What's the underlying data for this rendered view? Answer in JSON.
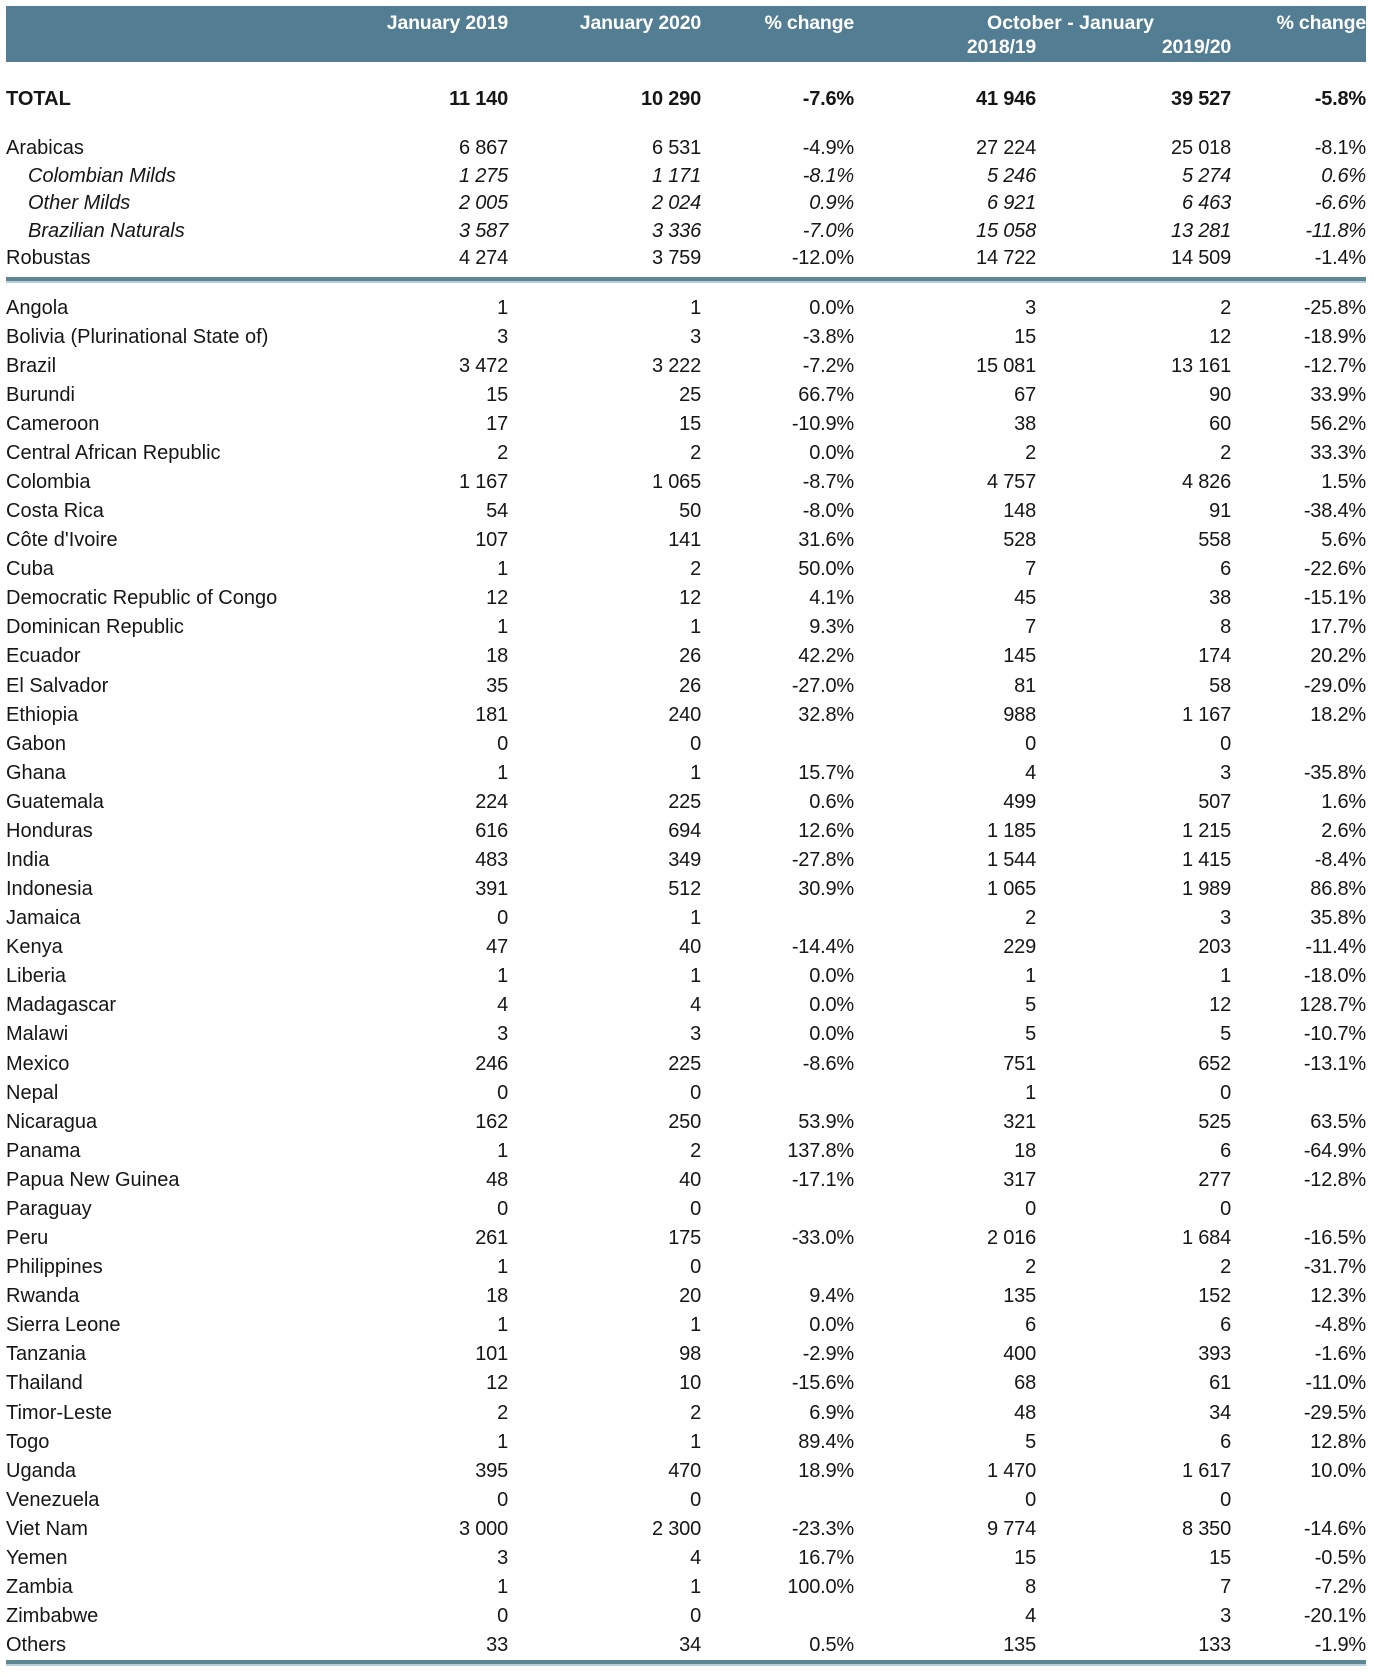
{
  "header": {
    "col_jan2019": "January 2019",
    "col_jan2020": "January 2020",
    "col_pct_change_month": "% change",
    "col_oct_jan": "October - January",
    "col_2018_19": "2018/19",
    "col_2019_20": "2019/20",
    "col_pct_change_season": "% change"
  },
  "total": {
    "label": "TOTAL",
    "values": [
      "11 140",
      "10 290",
      "-7.6%",
      "41 946",
      "39 527",
      "-5.8%"
    ]
  },
  "groups": [
    {
      "label": "Arabicas",
      "italic": false,
      "values": [
        "6 867",
        "6 531",
        "-4.9%",
        "27 224",
        "25 018",
        "-8.1%"
      ]
    },
    {
      "label": "Colombian Milds",
      "italic": true,
      "values": [
        "1 275",
        "1 171",
        "-8.1%",
        "5 246",
        "5 274",
        "0.6%"
      ]
    },
    {
      "label": "Other Milds",
      "italic": true,
      "values": [
        "2 005",
        "2 024",
        "0.9%",
        "6 921",
        "6 463",
        "-6.6%"
      ]
    },
    {
      "label": "Brazilian Naturals",
      "italic": true,
      "values": [
        "3 587",
        "3 336",
        "-7.0%",
        "15 058",
        "13 281",
        "-11.8%"
      ]
    },
    {
      "label": "Robustas",
      "italic": false,
      "values": [
        "4 274",
        "3 759",
        "-12.0%",
        "14 722",
        "14 509",
        "-1.4%"
      ]
    }
  ],
  "countries": [
    {
      "label": "Angola",
      "values": [
        "1",
        "1",
        "0.0%",
        "3",
        "2",
        "-25.8%"
      ]
    },
    {
      "label": "Bolivia (Plurinational State of)",
      "values": [
        "3",
        "3",
        "-3.8%",
        "15",
        "12",
        "-18.9%"
      ]
    },
    {
      "label": "Brazil",
      "values": [
        "3 472",
        "3 222",
        "-7.2%",
        "15 081",
        "13 161",
        "-12.7%"
      ]
    },
    {
      "label": "Burundi",
      "values": [
        "15",
        "25",
        "66.7%",
        "67",
        "90",
        "33.9%"
      ]
    },
    {
      "label": "Cameroon",
      "values": [
        "17",
        "15",
        "-10.9%",
        "38",
        "60",
        "56.2%"
      ]
    },
    {
      "label": "Central African Republic",
      "values": [
        "2",
        "2",
        "0.0%",
        "2",
        "2",
        "33.3%"
      ]
    },
    {
      "label": "Colombia",
      "values": [
        "1 167",
        "1 065",
        "-8.7%",
        "4 757",
        "4 826",
        "1.5%"
      ]
    },
    {
      "label": "Costa Rica",
      "values": [
        "54",
        "50",
        "-8.0%",
        "148",
        "91",
        "-38.4%"
      ]
    },
    {
      "label": "Côte d'Ivoire",
      "values": [
        "107",
        "141",
        "31.6%",
        "528",
        "558",
        "5.6%"
      ]
    },
    {
      "label": "Cuba",
      "values": [
        "1",
        "2",
        "50.0%",
        "7",
        "6",
        "-22.6%"
      ]
    },
    {
      "label": "Democratic Republic of Congo",
      "values": [
        "12",
        "12",
        "4.1%",
        "45",
        "38",
        "-15.1%"
      ]
    },
    {
      "label": "Dominican Republic",
      "values": [
        "1",
        "1",
        "9.3%",
        "7",
        "8",
        "17.7%"
      ]
    },
    {
      "label": "Ecuador",
      "values": [
        "18",
        "26",
        "42.2%",
        "145",
        "174",
        "20.2%"
      ]
    },
    {
      "label": "El Salvador",
      "values": [
        "35",
        "26",
        "-27.0%",
        "81",
        "58",
        "-29.0%"
      ]
    },
    {
      "label": "Ethiopia",
      "values": [
        "181",
        "240",
        "32.8%",
        "988",
        "1 167",
        "18.2%"
      ]
    },
    {
      "label": "Gabon",
      "values": [
        "0",
        "0",
        "",
        "0",
        "0",
        ""
      ]
    },
    {
      "label": "Ghana",
      "values": [
        "1",
        "1",
        "15.7%",
        "4",
        "3",
        "-35.8%"
      ]
    },
    {
      "label": "Guatemala",
      "values": [
        "224",
        "225",
        "0.6%",
        "499",
        "507",
        "1.6%"
      ]
    },
    {
      "label": "Honduras",
      "values": [
        "616",
        "694",
        "12.6%",
        "1 185",
        "1 215",
        "2.6%"
      ]
    },
    {
      "label": "India",
      "values": [
        "483",
        "349",
        "-27.8%",
        "1 544",
        "1 415",
        "-8.4%"
      ]
    },
    {
      "label": "Indonesia",
      "values": [
        "391",
        "512",
        "30.9%",
        "1 065",
        "1 989",
        "86.8%"
      ]
    },
    {
      "label": "Jamaica",
      "values": [
        "0",
        "1",
        "",
        "2",
        "3",
        "35.8%"
      ]
    },
    {
      "label": "Kenya",
      "values": [
        "47",
        "40",
        "-14.4%",
        "229",
        "203",
        "-11.4%"
      ]
    },
    {
      "label": "Liberia",
      "values": [
        "1",
        "1",
        "0.0%",
        "1",
        "1",
        "-18.0%"
      ]
    },
    {
      "label": "Madagascar",
      "values": [
        "4",
        "4",
        "0.0%",
        "5",
        "12",
        "128.7%"
      ]
    },
    {
      "label": "Malawi",
      "values": [
        "3",
        "3",
        "0.0%",
        "5",
        "5",
        "-10.7%"
      ]
    },
    {
      "label": "Mexico",
      "values": [
        "246",
        "225",
        "-8.6%",
        "751",
        "652",
        "-13.1%"
      ]
    },
    {
      "label": "Nepal",
      "values": [
        "0",
        "0",
        "",
        "1",
        "0",
        ""
      ]
    },
    {
      "label": "Nicaragua",
      "values": [
        "162",
        "250",
        "53.9%",
        "321",
        "525",
        "63.5%"
      ]
    },
    {
      "label": "Panama",
      "values": [
        "1",
        "2",
        "137.8%",
        "18",
        "6",
        "-64.9%"
      ]
    },
    {
      "label": "Papua New Guinea",
      "values": [
        "48",
        "40",
        "-17.1%",
        "317",
        "277",
        "-12.8%"
      ]
    },
    {
      "label": "Paraguay",
      "values": [
        "0",
        "0",
        "",
        "0",
        "0",
        ""
      ]
    },
    {
      "label": "Peru",
      "values": [
        "261",
        "175",
        "-33.0%",
        "2 016",
        "1 684",
        "-16.5%"
      ]
    },
    {
      "label": "Philippines",
      "values": [
        "1",
        "0",
        "",
        "2",
        "2",
        "-31.7%"
      ]
    },
    {
      "label": "Rwanda",
      "values": [
        "18",
        "20",
        "9.4%",
        "135",
        "152",
        "12.3%"
      ]
    },
    {
      "label": "Sierra Leone",
      "values": [
        "1",
        "1",
        "0.0%",
        "6",
        "6",
        "-4.8%"
      ]
    },
    {
      "label": "Tanzania",
      "values": [
        "101",
        "98",
        "-2.9%",
        "400",
        "393",
        "-1.6%"
      ]
    },
    {
      "label": "Thailand",
      "values": [
        "12",
        "10",
        "-15.6%",
        "68",
        "61",
        "-11.0%"
      ]
    },
    {
      "label": "Timor-Leste",
      "values": [
        "2",
        "2",
        "6.9%",
        "48",
        "34",
        "-29.5%"
      ]
    },
    {
      "label": "Togo",
      "values": [
        "1",
        "1",
        "89.4%",
        "5",
        "6",
        "12.8%"
      ]
    },
    {
      "label": "Uganda",
      "values": [
        "395",
        "470",
        "18.9%",
        "1 470",
        "1 617",
        "10.0%"
      ]
    },
    {
      "label": "Venezuela",
      "values": [
        "0",
        "0",
        "",
        "0",
        "0",
        ""
      ]
    },
    {
      "label": "Viet Nam",
      "values": [
        "3 000",
        "2 300",
        "-23.3%",
        "9 774",
        "8 350",
        "-14.6%"
      ]
    },
    {
      "label": "Yemen",
      "values": [
        "3",
        "4",
        "16.7%",
        "15",
        "15",
        "-0.5%"
      ]
    },
    {
      "label": "Zambia",
      "values": [
        "1",
        "1",
        "100.0%",
        "8",
        "7",
        "-7.2%"
      ]
    },
    {
      "label": "Zimbabwe",
      "values": [
        "0",
        "0",
        "",
        "4",
        "3",
        "-20.1%"
      ]
    },
    {
      "label": "Others",
      "values": [
        "33",
        "34",
        "0.5%",
        "135",
        "133",
        "-1.9%"
      ]
    }
  ],
  "colors": {
    "header_bg": "#527D93",
    "header_text": "#FFFFFF",
    "divider_dark": "#5E8796",
    "divider_light": "#B6CFD9",
    "body_text": "#161616"
  }
}
